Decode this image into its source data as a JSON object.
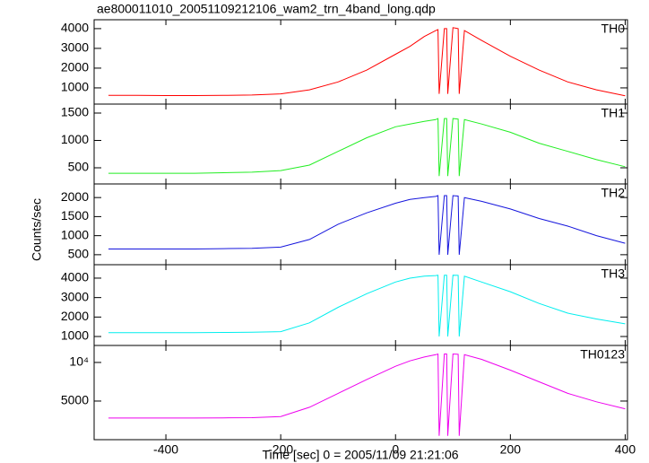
{
  "chart_data": {
    "type": "line",
    "title": "ae800011010_20051109212106_wam2_trn_4band_long.qdp",
    "xlabel": "Time [sec] 0 = 2005/11/09 21:21:06",
    "ylabel": "Counts/sec",
    "x": [
      -500,
      -450,
      -400,
      -350,
      -300,
      -250,
      -200,
      -150,
      -100,
      -50,
      0,
      25,
      50,
      70,
      74,
      76,
      85,
      89,
      91,
      100,
      109,
      111,
      120,
      150,
      200,
      250,
      300,
      350,
      400
    ],
    "xlim": [
      -525,
      404
    ],
    "xticks": [
      -400,
      -200,
      0,
      200,
      400
    ],
    "series": [
      {
        "name": "TH0",
        "color": "#ff0000",
        "ylim": [
          180,
          4450
        ],
        "yticks": [
          1000,
          2000,
          3000,
          4000
        ],
        "values": [
          620,
          620,
          610,
          610,
          620,
          640,
          700,
          900,
          1300,
          1900,
          2700,
          3100,
          3600,
          3900,
          3950,
          700,
          4000,
          4000,
          700,
          4050,
          4000,
          700,
          3900,
          3400,
          2600,
          1900,
          1300,
          900,
          600
        ]
      },
      {
        "name": "TH1",
        "color": "#22ee22",
        "ylim": [
          205,
          1664
        ],
        "yticks": [
          500,
          1000,
          1500
        ],
        "values": [
          400,
          400,
          400,
          400,
          410,
          420,
          450,
          550,
          800,
          1050,
          1250,
          1300,
          1350,
          1380,
          1400,
          350,
          1400,
          1400,
          350,
          1400,
          1390,
          350,
          1380,
          1300,
          1150,
          950,
          800,
          650,
          520
        ]
      },
      {
        "name": "TH2",
        "color": "#1515dd",
        "ylim": [
          238,
          2357
        ],
        "yticks": [
          500,
          1000,
          1500,
          2000
        ],
        "values": [
          650,
          650,
          650,
          650,
          660,
          670,
          700,
          900,
          1300,
          1600,
          1850,
          1950,
          2000,
          2030,
          2050,
          500,
          2050,
          2050,
          500,
          2050,
          2040,
          500,
          2000,
          1900,
          1700,
          1450,
          1250,
          1000,
          800
        ]
      },
      {
        "name": "TH3",
        "color": "#00eeee",
        "ylim": [
          540,
          4690
        ],
        "yticks": [
          1000,
          2000,
          3000,
          4000
        ],
        "values": [
          1200,
          1200,
          1200,
          1200,
          1210,
          1220,
          1250,
          1700,
          2500,
          3200,
          3800,
          4000,
          4100,
          4130,
          4150,
          1000,
          4150,
          4150,
          1000,
          4150,
          4140,
          1000,
          4100,
          3800,
          3300,
          2700,
          2200,
          1900,
          1650
        ]
      },
      {
        "name": "TH0123",
        "color": "#ee00ee",
        "ylim": [
          0,
          12200
        ],
        "yticks": [
          5000,
          {
            "value": 10000,
            "label": "10⁴"
          }
        ],
        "values": [
          2800,
          2800,
          2800,
          2800,
          2820,
          2850,
          3000,
          4200,
          6000,
          7800,
          9500,
          10200,
          10700,
          11000,
          11100,
          500,
          11100,
          11100,
          500,
          11100,
          11050,
          500,
          11000,
          10400,
          9000,
          7500,
          6000,
          4900,
          4000
        ]
      }
    ]
  }
}
